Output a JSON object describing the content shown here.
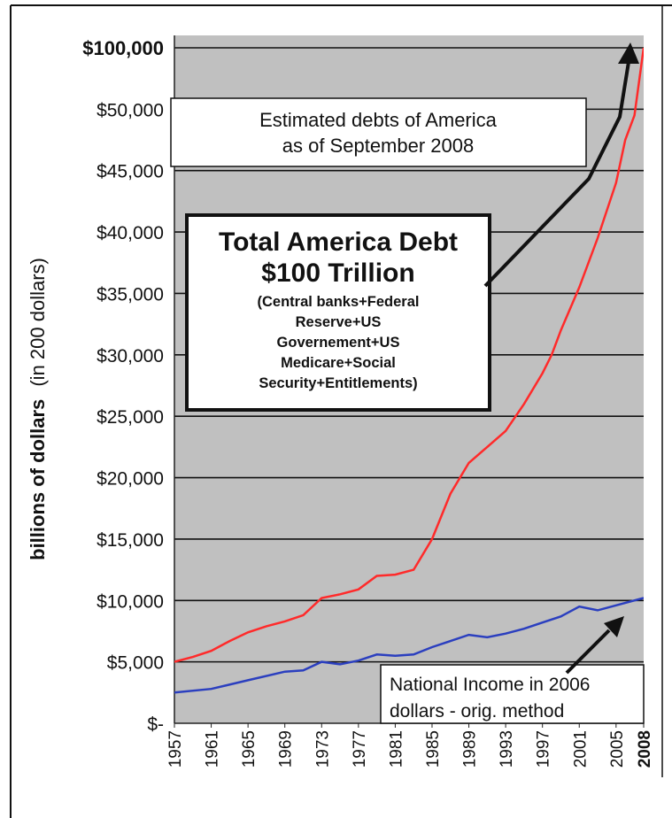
{
  "chart_data": {
    "type": "line",
    "title": "",
    "ylabel_bold": "billions of dollars",
    "ylabel_normal": "(in 200  dollars)",
    "xlabel": "",
    "ytick_labels": [
      "$-",
      "$5,000",
      "$10,000",
      "$15,000",
      "$20,000",
      "$25,000",
      "$30,000",
      "$35,000",
      "$40,000",
      "$45,000",
      "$50,000",
      "$100,000"
    ],
    "ytick_values": [
      0,
      5000,
      10000,
      15000,
      20000,
      25000,
      30000,
      35000,
      40000,
      45000,
      50000,
      100000
    ],
    "xtick_labels": [
      "1957",
      "1961",
      "1965",
      "1969",
      "1973",
      "1977",
      "1981",
      "1985",
      "1989",
      "1993",
      "1997",
      "2001",
      "2005",
      "2008"
    ],
    "xlim": [
      1957,
      2008
    ],
    "grid": true,
    "background_color": "#c0c0c0",
    "series": [
      {
        "name": "Total America Debt",
        "color": "#ff2a2a",
        "x": [
          1957,
          1959,
          1961,
          1963,
          1965,
          1967,
          1969,
          1971,
          1973,
          1975,
          1977,
          1979,
          1981,
          1983,
          1985,
          1987,
          1989,
          1991,
          1993,
          1995,
          1997,
          1998,
          1999,
          2001,
          2003,
          2005,
          2006,
          2007,
          2008
        ],
        "y": [
          5000,
          5400,
          5900,
          6700,
          7400,
          7900,
          8300,
          8800,
          10200,
          10500,
          10900,
          12000,
          12100,
          12500,
          15000,
          18700,
          21200,
          22500,
          23800,
          26000,
          28500,
          30000,
          32000,
          35500,
          39500,
          44000,
          47500,
          49500,
          100000
        ]
      },
      {
        "name": "National Income in 2006 dollars - orig. method",
        "color": "#2b3fbf",
        "x": [
          1957,
          1961,
          1965,
          1969,
          1971,
          1973,
          1975,
          1977,
          1979,
          1981,
          1983,
          1985,
          1987,
          1989,
          1991,
          1993,
          1995,
          1997,
          1999,
          2001,
          2003,
          2005,
          2008
        ],
        "y": [
          2500,
          2800,
          3500,
          4200,
          4300,
          5000,
          4800,
          5100,
          5600,
          5500,
          5600,
          6200,
          6700,
          7200,
          7000,
          7300,
          7700,
          8200,
          8700,
          9500,
          9200,
          9600,
          10200
        ]
      }
    ],
    "annotations": {
      "header_box": {
        "line1": "Estimated debts of  America",
        "line2": "as of September 2008"
      },
      "main_box": {
        "title1": "Total America Debt",
        "title2": "$100 Trillion",
        "details": [
          "(Central banks+Federal",
          "Reserve+US",
          "Governement+US",
          "Medicare+Social",
          "Security+Entitlements)"
        ]
      },
      "income_box": {
        "line1": "National Income in 2006",
        "line2": "dollars - orig. method"
      }
    }
  }
}
